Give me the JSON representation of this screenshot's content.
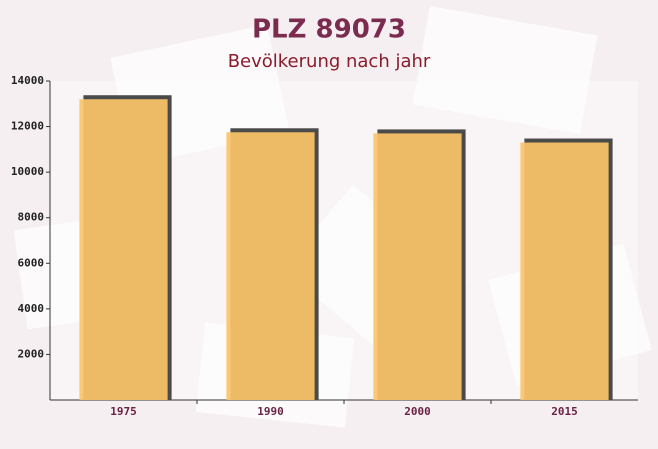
{
  "chart_data": {
    "type": "bar",
    "title": "PLZ 89073",
    "subtitle": "Bevölkerung nach jahr",
    "categories": [
      "1975",
      "1990",
      "2000",
      "2015"
    ],
    "values": [
      13200,
      11750,
      11700,
      11300
    ],
    "color": "#fbc468",
    "ylim": [
      0,
      14000
    ],
    "yticks": [
      2000,
      4000,
      6000,
      8000,
      10000,
      12000,
      14000
    ]
  }
}
